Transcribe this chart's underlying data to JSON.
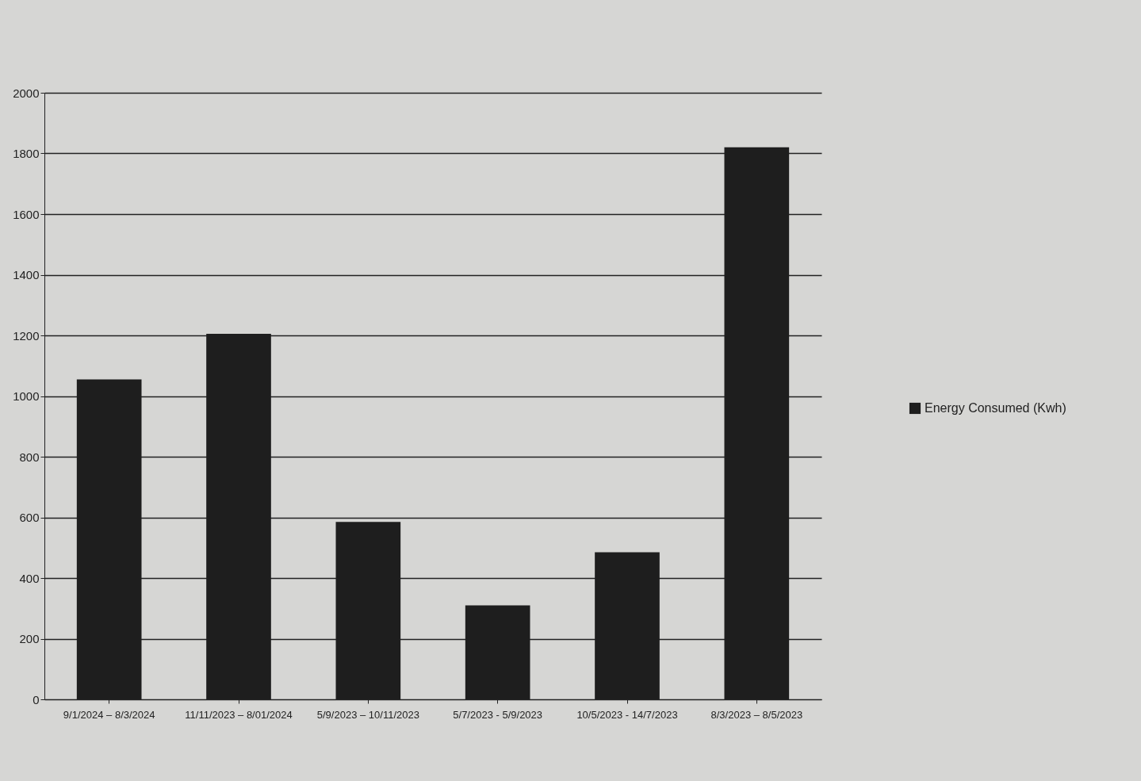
{
  "chart_data": {
    "type": "bar",
    "categories": [
      "9/1/2024 – 8/3/2024",
      "11/11/2023 – 8/01/2024",
      "5/9/2023 – 10/11/2023",
      "5/7/2023 - 5/9/2023",
      "10/5/2023 - 14/7/2023",
      "8/3/2023 – 8/5/2023"
    ],
    "series": [
      {
        "name": "Energy Consumed (Kwh)",
        "color": "#1e1e1e",
        "values": [
          1055,
          1205,
          585,
          310,
          485,
          1820
        ]
      }
    ],
    "ylim": [
      0,
      2000
    ],
    "yticks": [
      0,
      200,
      400,
      600,
      800,
      1000,
      1200,
      1400,
      1600,
      1800,
      2000
    ],
    "grid": "y",
    "legend": "right"
  }
}
